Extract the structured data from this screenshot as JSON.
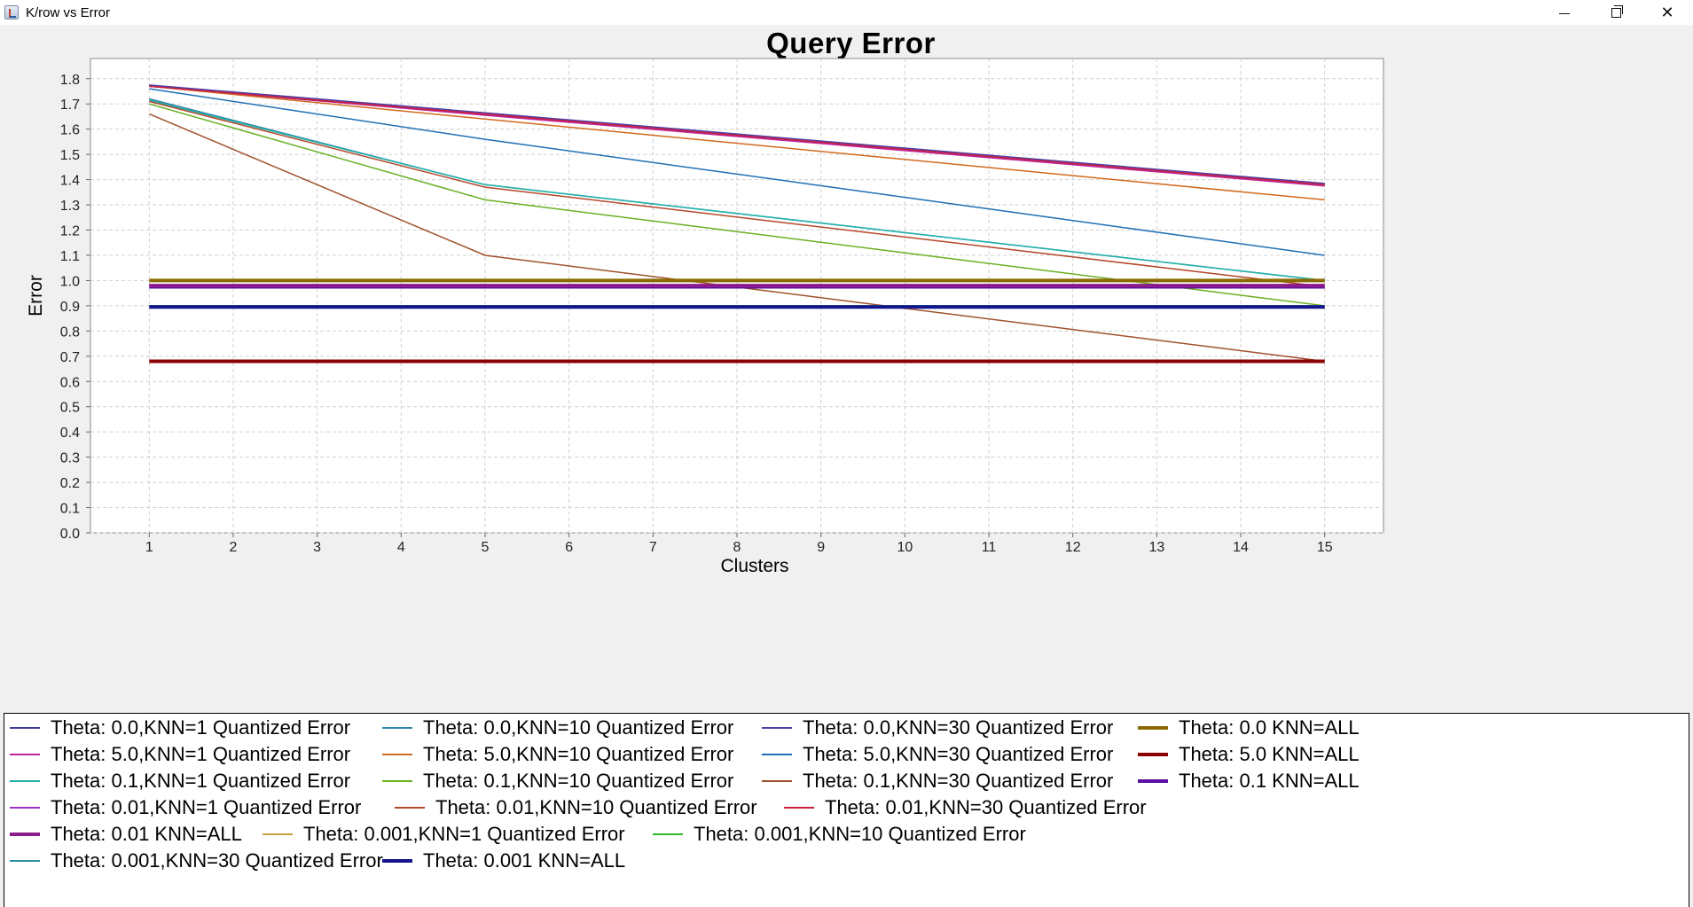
{
  "window": {
    "title": "K/row vs Error",
    "controls": {
      "minimize": "minimize-icon",
      "maximize": "restore-icon",
      "close": "✕"
    }
  },
  "chart_data": {
    "type": "line",
    "title": "Query Error",
    "xlabel": "Clusters",
    "ylabel": "Error",
    "xlim": [
      0.3,
      15.7
    ],
    "ylim": [
      0.0,
      1.88
    ],
    "x_ticks": [
      1,
      2,
      3,
      4,
      5,
      6,
      7,
      8,
      9,
      10,
      11,
      12,
      13,
      14,
      15
    ],
    "y_ticks": [
      "0.0",
      "0.1",
      "0.2",
      "0.3",
      "0.4",
      "0.5",
      "0.6",
      "0.7",
      "0.8",
      "0.9",
      "1.0",
      "1.1",
      "1.2",
      "1.3",
      "1.4",
      "1.5",
      "1.6",
      "1.7",
      "1.8"
    ],
    "grid": true,
    "legend_position": "bottom",
    "x": [
      1,
      5,
      15
    ],
    "series": [
      {
        "name": "Theta: 0.0,KNN=1 Quantized Error",
        "color": "#3b3b98",
        "width": 1.5,
        "values": [
          1.77,
          1.66,
          1.38
        ]
      },
      {
        "name": "Theta: 0.0,KNN=10 Quantized Error",
        "color": "#2e86ab",
        "width": 1.5,
        "values": [
          1.72,
          1.38,
          1.0
        ]
      },
      {
        "name": "Theta: 0.0,KNN=30 Quantized Error",
        "color": "#4b3fa8",
        "width": 1.5,
        "values": [
          1.775,
          1.665,
          1.385
        ]
      },
      {
        "name": "Theta: 0.0 KNN=ALL",
        "color": "#8a6a00",
        "width": 4,
        "values": [
          1.0,
          1.0,
          1.0
        ]
      },
      {
        "name": "Theta: 5.0,KNN=1 Quantized Error",
        "color": "#c0249a",
        "width": 1.5,
        "values": [
          1.77,
          1.655,
          1.375
        ]
      },
      {
        "name": "Theta: 5.0,KNN=10 Quantized Error",
        "color": "#d2691e",
        "width": 1.5,
        "values": [
          1.77,
          1.64,
          1.32
        ]
      },
      {
        "name": "Theta: 5.0,KNN=30 Quantized Error",
        "color": "#1f6fb5",
        "width": 1.5,
        "values": [
          1.76,
          1.56,
          1.1
        ]
      },
      {
        "name": "Theta: 5.0 KNN=ALL",
        "color": "#8b0000",
        "width": 4,
        "values": [
          0.68,
          0.68,
          0.68
        ]
      },
      {
        "name": "Theta: 0.1,KNN=1 Quantized Error",
        "color": "#20b2aa",
        "width": 1.5,
        "values": [
          1.715,
          1.38,
          1.0
        ]
      },
      {
        "name": "Theta: 0.1,KNN=10 Quantized Error",
        "color": "#6ab023",
        "width": 1.5,
        "values": [
          1.7,
          1.32,
          0.9
        ]
      },
      {
        "name": "Theta: 0.1,KNN=30 Quantized Error",
        "color": "#a0522d",
        "width": 1.5,
        "values": [
          1.66,
          1.1,
          0.68
        ]
      },
      {
        "name": "Theta: 0.1 KNN=ALL",
        "color": "#5a0fa0",
        "width": 4,
        "values": [
          0.975,
          0.975,
          0.975
        ]
      },
      {
        "name": "Theta: 0.01,KNN=1 Quantized Error",
        "color": "#9b30c8",
        "width": 1.5,
        "values": [
          1.77,
          1.66,
          1.38
        ]
      },
      {
        "name": "Theta: 0.01,KNN=10 Quantized Error",
        "color": "#b5472b",
        "width": 1.5,
        "values": [
          1.71,
          1.37,
          0.975
        ]
      },
      {
        "name": "Theta: 0.01,KNN=30 Quantized Error",
        "color": "#c8203a",
        "width": 1.5,
        "values": [
          1.77,
          1.66,
          1.38
        ]
      },
      {
        "name": "Theta: 0.01 KNN=ALL",
        "color": "#8b1a8b",
        "width": 4,
        "values": [
          0.98,
          0.98,
          0.98
        ]
      },
      {
        "name": "Theta: 0.001,KNN=1 Quantized Error",
        "color": "#c8a03c",
        "width": 1.5,
        "values": [
          1.0,
          1.0,
          1.0
        ]
      },
      {
        "name": "Theta: 0.001,KNN=10 Quantized Error",
        "color": "#2db82d",
        "width": 1.5,
        "values": [
          0.9,
          0.9,
          0.9
        ]
      },
      {
        "name": "Theta: 0.001,KNN=30 Quantized Error",
        "color": "#2a8fa8",
        "width": 1.5,
        "values": [
          0.9,
          0.9,
          0.9
        ]
      },
      {
        "name": "Theta: 0.001 KNN=ALL",
        "color": "#14148c",
        "width": 4,
        "values": [
          0.895,
          0.895,
          0.895
        ]
      }
    ]
  }
}
